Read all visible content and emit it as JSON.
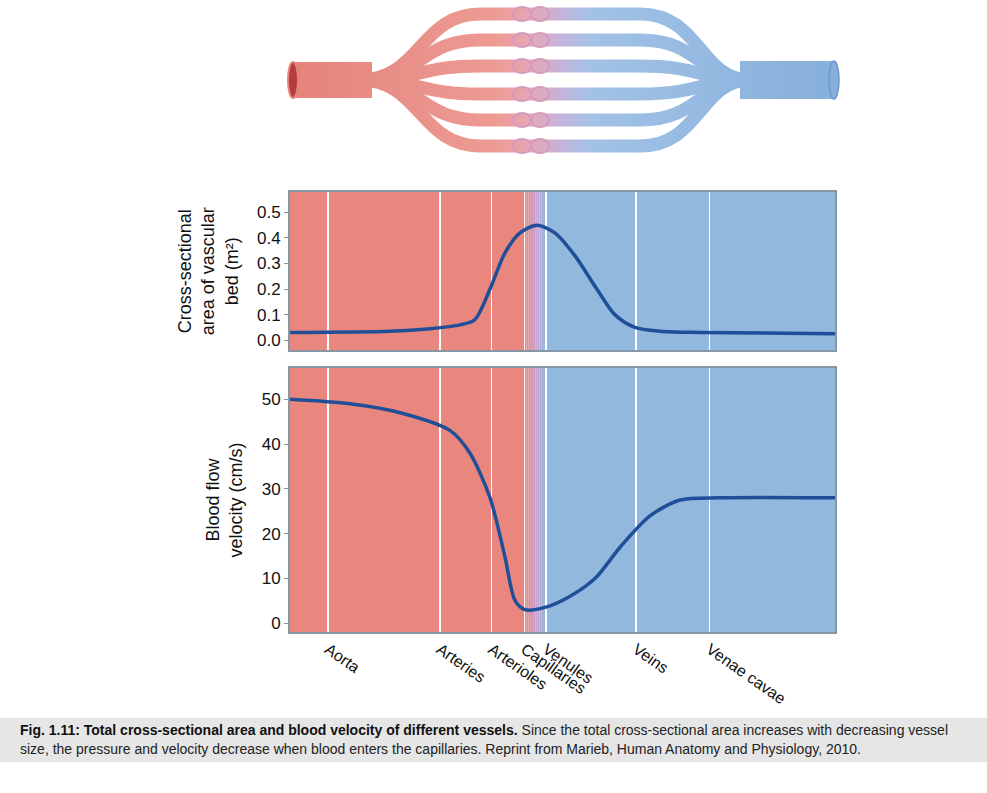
{
  "figure": {
    "caption_title": "Fig. 1.11: Total cross-sectional area and blood velocity of different vessels.",
    "caption_text": "Since the total cross-sectional area increases with decreasing vessel size, the pressure and velocity decrease when blood enters the capillaries. Reprint from Marieb, Human Anatomy and Physiology, 2010."
  },
  "chart_data": [
    {
      "type": "line",
      "y_label": "Cross-sectional area of vascular bed (m²)",
      "x": [
        0,
        18.3,
        25.7,
        31.2,
        33.9,
        36.7,
        39.4,
        42.2,
        45.3,
        48.6,
        52.3,
        56.3,
        59.6,
        63.3,
        67.9,
        75.2,
        100
      ],
      "values": [
        0.03,
        0.035,
        0.045,
        0.06,
        0.08,
        0.2,
        0.34,
        0.42,
        0.45,
        0.42,
        0.33,
        0.2,
        0.1,
        0.05,
        0.035,
        0.03,
        0.025
      ],
      "color": "#1f4f98",
      "xlim": [
        0,
        100
      ],
      "xticks": [
        7,
        27.5,
        37,
        43,
        47,
        63.5,
        77
      ],
      "ylim": [
        -0.04,
        0.58
      ],
      "yticks": [
        {
          "value": 0,
          "label": "0.0"
        },
        0.1,
        0.2,
        0.3,
        0.4,
        0.5
      ],
      "grid": "x",
      "tick_labels": "y"
    },
    {
      "type": "line",
      "y_label": "Blood flow velocity (cm/s)",
      "x": [
        0,
        11,
        20.2,
        29.4,
        33,
        36.7,
        39.4,
        41.3,
        43.1,
        46.8,
        51.4,
        56,
        60.6,
        66.1,
        71.6,
        78.9,
        100
      ],
      "values": [
        50,
        49,
        47,
        43,
        38,
        28,
        15,
        5,
        3,
        3.5,
        6,
        10,
        17,
        24,
        27.5,
        28,
        28
      ],
      "color": "#1f4f98",
      "xlim": [
        0,
        100
      ],
      "xticks": [
        {
          "value": 7,
          "label": "Aorta"
        },
        {
          "value": 27.5,
          "label": "Arteries"
        },
        {
          "value": 37,
          "label": "Arterioles"
        },
        {
          "value": 43,
          "label": "Capillaries"
        },
        {
          "value": 47,
          "label": "Venules"
        },
        {
          "value": 63.5,
          "label": "Veins"
        },
        {
          "value": 77,
          "label": "Venae cavae"
        }
      ],
      "ylim": [
        -2,
        57
      ],
      "yticks": [
        0,
        10,
        20,
        30,
        40,
        50
      ],
      "grid": "x"
    }
  ]
}
